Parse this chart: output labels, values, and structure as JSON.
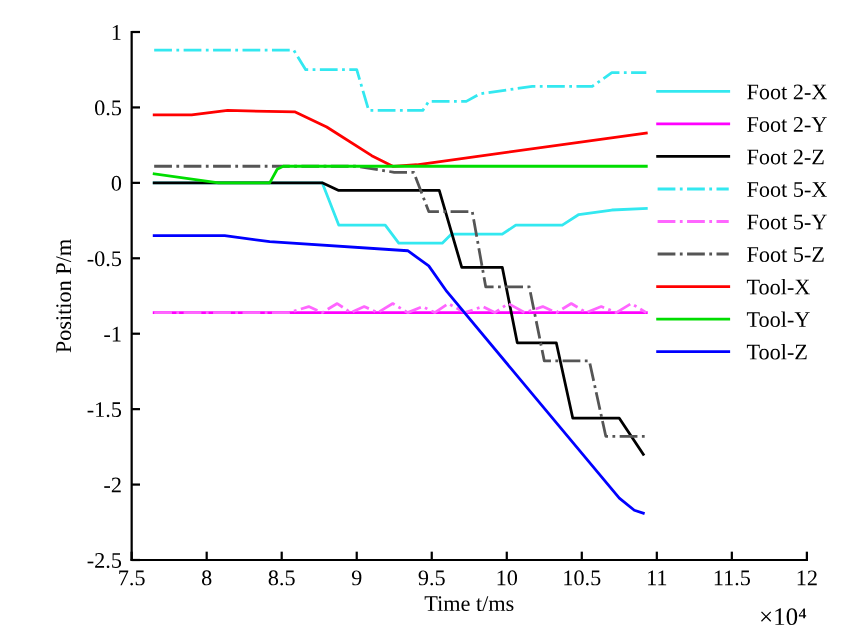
{
  "chart_data": {
    "type": "line",
    "xlabel": "Time t/ms",
    "ylabel": "Position P/m",
    "annotations": [
      "×10⁴"
    ],
    "xlim": [
      7.5,
      12
    ],
    "xticks": [
      7.5,
      8,
      8.5,
      9,
      9.5,
      10,
      10.5,
      11,
      11.5,
      12
    ],
    "ylim": [
      -2.5,
      1
    ],
    "yticks": [
      -2.5,
      -2,
      -1.5,
      -1,
      -0.5,
      0,
      0.5,
      1
    ],
    "grid": false,
    "legend": "top right",
    "marker": "none",
    "series": [
      {
        "name": "Foot 2-X",
        "color": "#33e8f0",
        "line_style": "solid",
        "x": [
          7.65,
          8.77,
          8.88,
          9.19,
          9.28,
          9.57,
          9.63,
          9.97,
          10.06,
          10.37,
          10.48,
          10.7,
          10.93
        ],
        "values": [
          0,
          0,
          -0.28,
          -0.28,
          -0.4,
          -0.4,
          -0.34,
          -0.34,
          -0.28,
          -0.28,
          -0.21,
          -0.18,
          -0.17
        ]
      },
      {
        "name": "Foot 2-Y",
        "color": "#ff00ff",
        "line_style": "solid",
        "x": [
          7.65,
          10.93
        ],
        "values": [
          -0.86,
          -0.86
        ]
      },
      {
        "name": "Foot 2-Z",
        "color": "#000000",
        "line_style": "solid",
        "x": [
          7.65,
          8.77,
          8.88,
          9.55,
          9.7,
          9.97,
          10.07,
          10.33,
          10.44,
          10.75,
          10.91
        ],
        "values": [
          0,
          0,
          -0.05,
          -0.05,
          -0.56,
          -0.56,
          -1.06,
          -1.06,
          -1.56,
          -1.56,
          -1.8
        ]
      },
      {
        "name": "Foot 5-X",
        "color": "#33e8f0",
        "line_style": "dashdot",
        "x": [
          7.65,
          8.58,
          8.66,
          9.0,
          9.08,
          9.44,
          9.48,
          9.73,
          9.82,
          10.17,
          10.57,
          10.7,
          10.93
        ],
        "values": [
          0.88,
          0.88,
          0.75,
          0.75,
          0.48,
          0.48,
          0.54,
          0.54,
          0.59,
          0.64,
          0.64,
          0.73,
          0.73
        ]
      },
      {
        "name": "Foot 5-Y",
        "color": "#ff66ff",
        "line_style": "dashdot",
        "x": [
          7.65,
          8.55,
          8.68,
          8.77,
          8.87,
          8.96,
          9.05,
          9.14,
          9.24,
          9.34,
          9.44,
          9.52,
          9.61,
          9.72,
          9.84,
          9.92,
          10.01,
          10.12,
          10.24,
          10.33,
          10.43,
          10.53,
          10.63,
          10.73,
          10.83,
          10.93
        ],
        "values": [
          -0.86,
          -0.86,
          -0.82,
          -0.86,
          -0.8,
          -0.86,
          -0.82,
          -0.86,
          -0.8,
          -0.86,
          -0.82,
          -0.86,
          -0.8,
          -0.86,
          -0.82,
          -0.86,
          -0.8,
          -0.86,
          -0.82,
          -0.86,
          -0.8,
          -0.86,
          -0.82,
          -0.86,
          -0.8,
          -0.86
        ]
      },
      {
        "name": "Foot 5-Z",
        "color": "#555555",
        "line_style": "dashdot",
        "x": [
          7.65,
          9.0,
          9.25,
          9.38,
          9.48,
          9.77,
          9.86,
          10.15,
          10.25,
          10.55,
          10.66,
          10.93
        ],
        "values": [
          0.11,
          0.11,
          0.07,
          0.07,
          -0.19,
          -0.19,
          -0.69,
          -0.69,
          -1.18,
          -1.18,
          -1.68,
          -1.68
        ]
      },
      {
        "name": "Tool-X",
        "color": "#ff0000",
        "line_style": "solid",
        "x": [
          7.65,
          7.9,
          8.14,
          8.59,
          8.8,
          9.1,
          9.24,
          9.4,
          10.93
        ],
        "values": [
          0.45,
          0.45,
          0.48,
          0.47,
          0.37,
          0.18,
          0.11,
          0.12,
          0.33
        ]
      },
      {
        "name": "Tool-Y",
        "color": "#00dd00",
        "line_style": "solid",
        "x": [
          7.65,
          8.08,
          8.42,
          8.47,
          8.51,
          10.93
        ],
        "values": [
          0.06,
          0,
          0,
          0.09,
          0.11,
          0.11
        ]
      },
      {
        "name": "Tool-Z",
        "color": "#0000ff",
        "line_style": "solid",
        "x": [
          7.65,
          8.12,
          8.42,
          9.34,
          9.48,
          9.6,
          10.75,
          10.85,
          10.91
        ],
        "values": [
          -0.35,
          -0.35,
          -0.39,
          -0.45,
          -0.55,
          -0.72,
          -2.09,
          -2.17,
          -2.19
        ]
      }
    ]
  }
}
